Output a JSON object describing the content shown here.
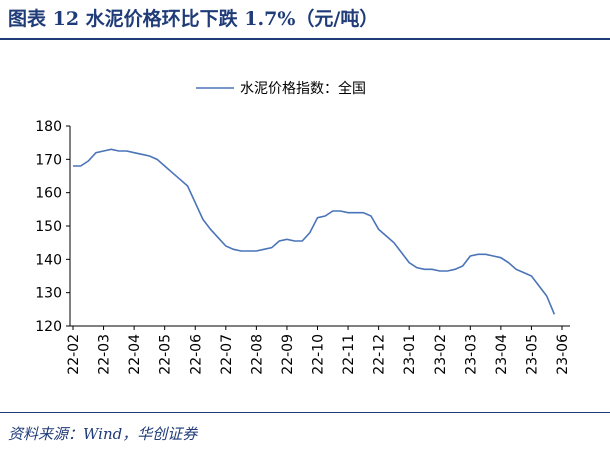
{
  "header": {
    "title": "图表 12  水泥价格环比下跌 1.7%（元/吨）"
  },
  "chart_data": {
    "type": "line",
    "categories": [
      "22-02",
      null,
      null,
      null,
      "22-03",
      null,
      null,
      null,
      "22-04",
      null,
      null,
      null,
      "22-05",
      null,
      null,
      null,
      "22-06",
      null,
      null,
      null,
      "22-07",
      null,
      null,
      null,
      "22-08",
      null,
      null,
      null,
      "22-09",
      null,
      null,
      null,
      "22-10",
      null,
      null,
      null,
      "22-11",
      null,
      null,
      null,
      "22-12",
      null,
      null,
      null,
      "23-01",
      null,
      null,
      null,
      "23-02",
      null,
      null,
      null,
      "23-03",
      null,
      null,
      null,
      "23-04",
      null,
      null,
      null,
      "23-05",
      null,
      null,
      null,
      "23-06"
    ],
    "series": [
      {
        "name": "水泥价格指数：全国",
        "color": "#4a74b8",
        "values": [
          168,
          168,
          169.5,
          172,
          172.5,
          173,
          172.5,
          172.5,
          172,
          171.5,
          171,
          170,
          168,
          166,
          164,
          162,
          157,
          152,
          149,
          146.5,
          144,
          143,
          142.5,
          142.5,
          142.5,
          143,
          143.5,
          145.5,
          146,
          145.5,
          145.5,
          148,
          152.5,
          153,
          154.5,
          154.5,
          154,
          154,
          154,
          153,
          149,
          147,
          145,
          142,
          139,
          137.5,
          137,
          137,
          136.5,
          136.5,
          137,
          138,
          141,
          141.5,
          141.5,
          141,
          140.5,
          139,
          137,
          136,
          135,
          132,
          129,
          123.5,
          null
        ]
      }
    ],
    "ylim": [
      120,
      180
    ],
    "yticks": [
      120,
      130,
      140,
      150,
      160,
      170,
      180
    ],
    "legend": "top"
  },
  "footer": {
    "source": "资料来源：Wind，华创证券"
  }
}
